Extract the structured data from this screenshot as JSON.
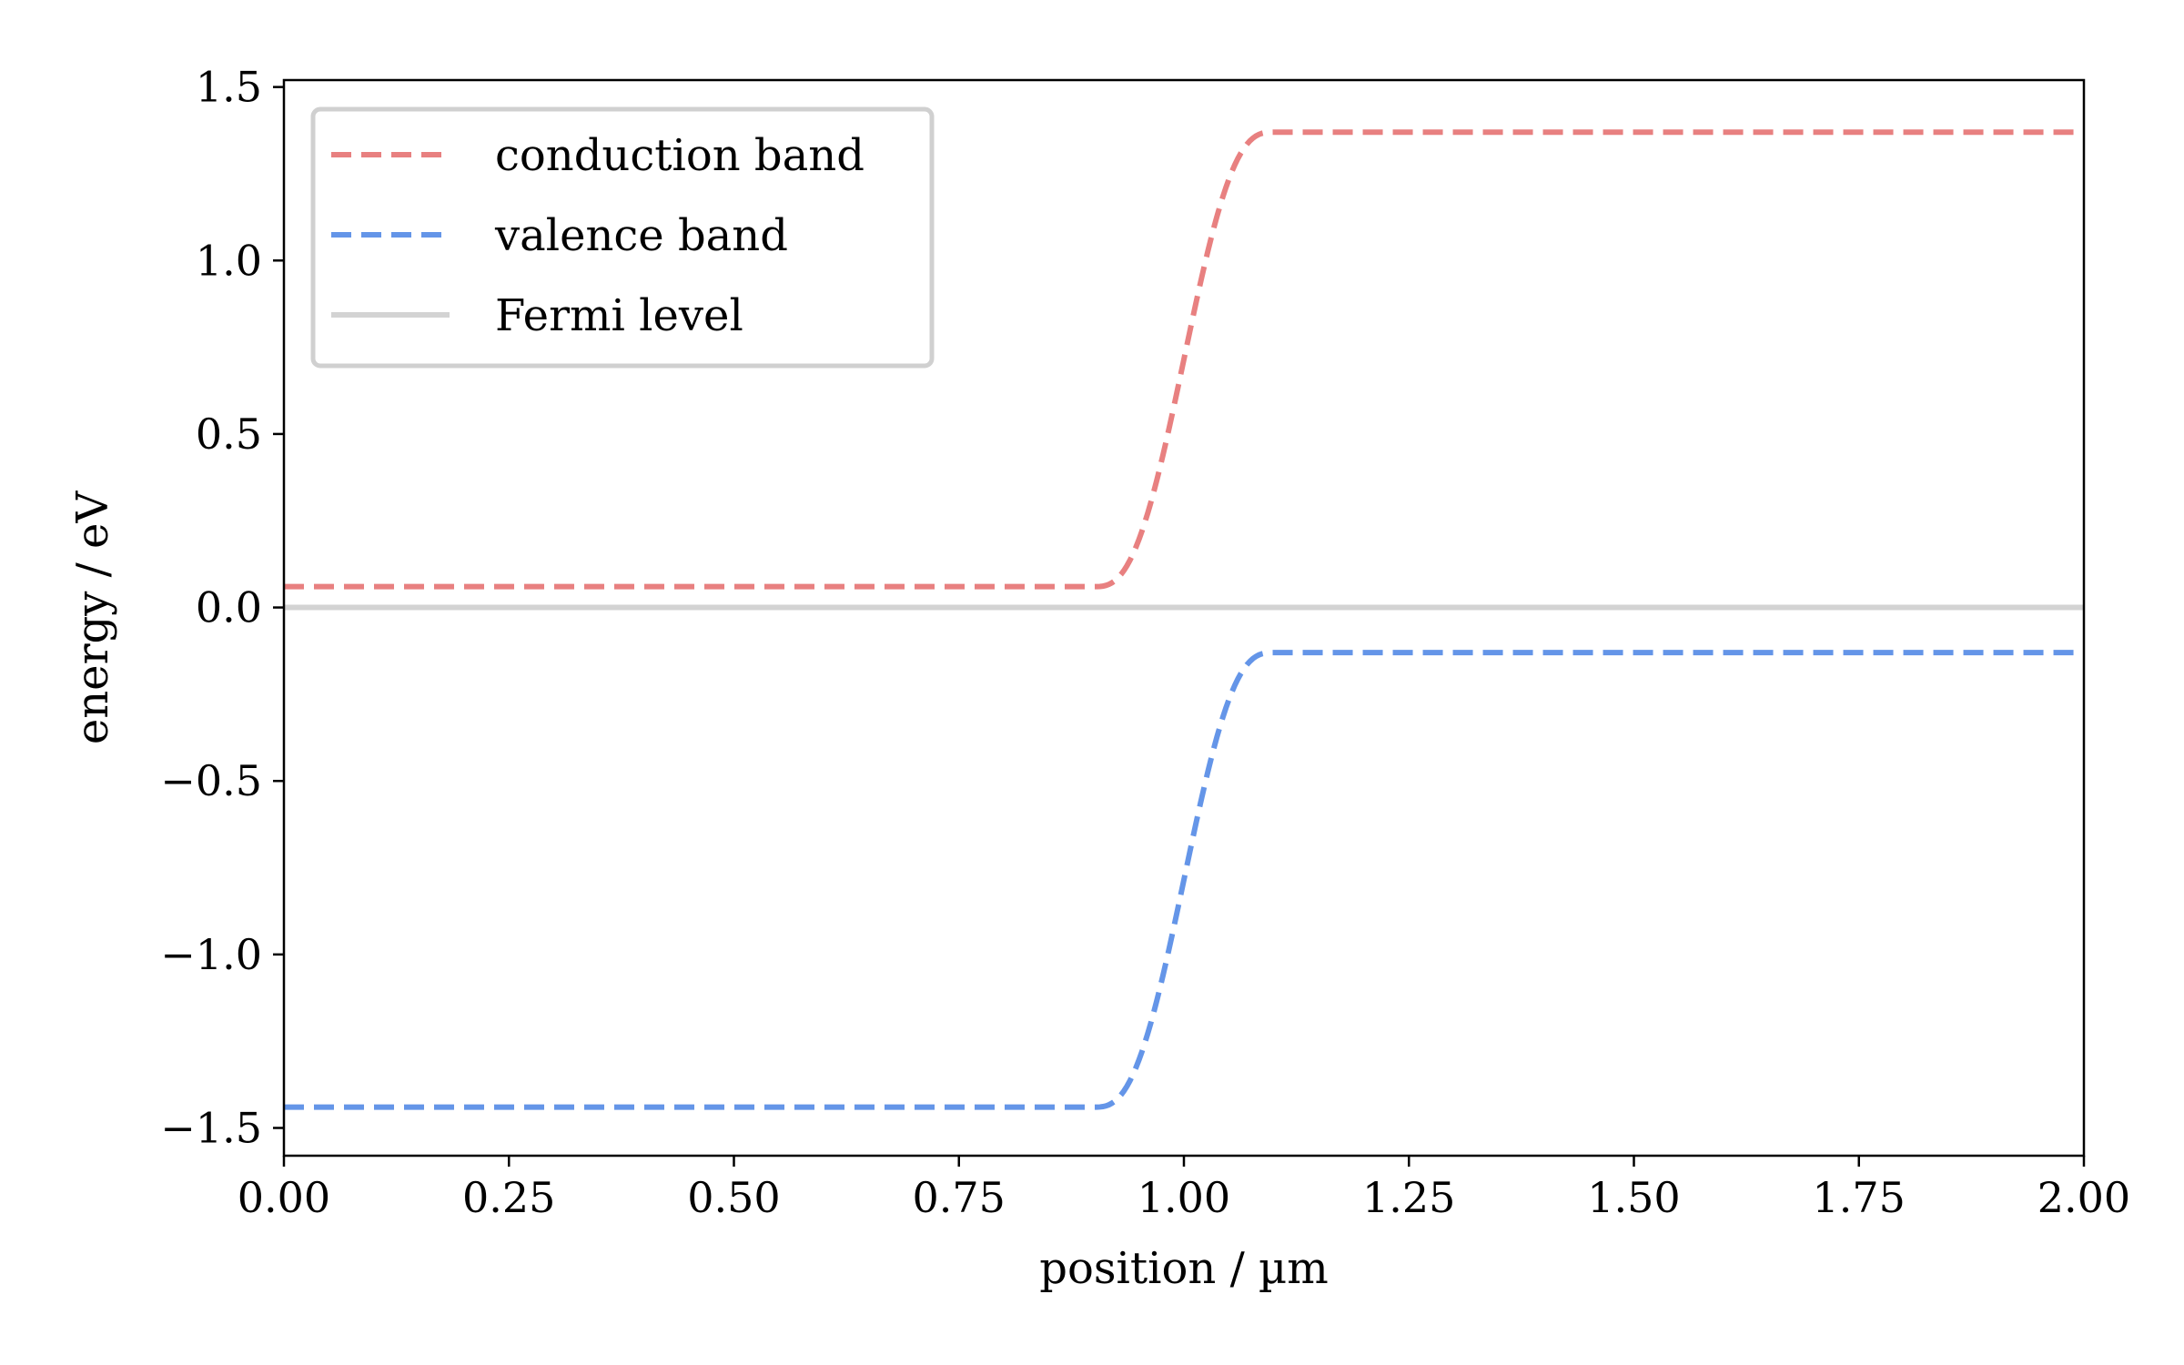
{
  "chart_data": {
    "type": "line",
    "xlabel": "position / µm",
    "ylabel": "energy / eV",
    "xlim": [
      0.0,
      2.0
    ],
    "ylim": [
      -1.58,
      1.52
    ],
    "xticks": [
      0.0,
      0.25,
      0.5,
      0.75,
      1.0,
      1.25,
      1.5,
      1.75,
      2.0
    ],
    "xtick_labels": [
      "0.00",
      "0.25",
      "0.50",
      "0.75",
      "1.00",
      "1.25",
      "1.50",
      "1.75",
      "2.00"
    ],
    "yticks": [
      -1.5,
      -1.0,
      -0.5,
      0.0,
      0.5,
      1.0,
      1.5
    ],
    "ytick_labels": [
      "−1.5",
      "−1.0",
      "−0.5",
      "0.0",
      "0.5",
      "1.0",
      "1.5"
    ],
    "legend_position": "top-left",
    "grid": false,
    "transition": {
      "center": 1.0,
      "start": 0.9,
      "end": 1.1
    },
    "series": [
      {
        "name": "conduction band",
        "style": "dashed",
        "color": "#e88080",
        "left": 0.06,
        "right": 1.37
      },
      {
        "name": "valence band",
        "style": "dashed",
        "color": "#6495e8",
        "left": -1.44,
        "right": -0.13
      },
      {
        "name": "Fermi level",
        "style": "solid",
        "color": "#d3d3d3",
        "left": 0.0,
        "right": 0.0
      }
    ]
  }
}
